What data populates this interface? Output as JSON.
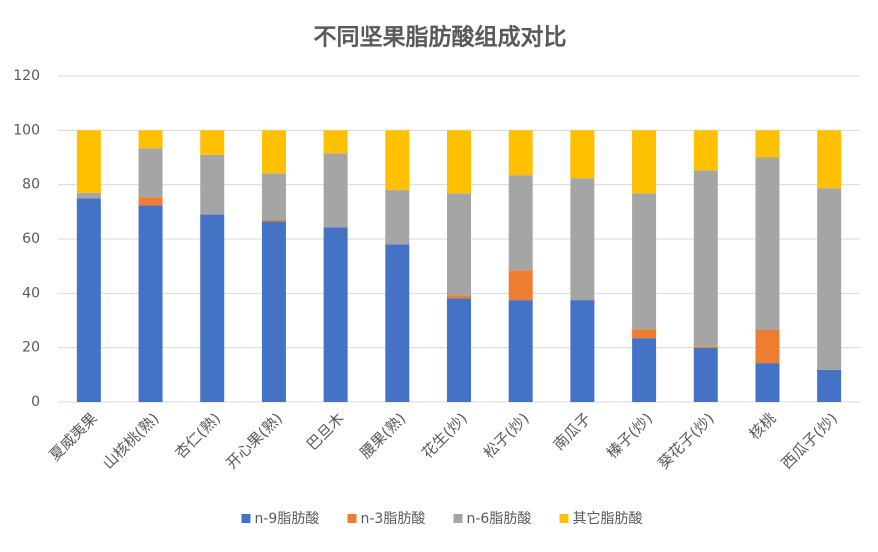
{
  "chart_data": {
    "type": "stacked_bar",
    "title": "不同坚果脂肪酸组成对比",
    "categories": [
      "夏威夷果",
      "山核桃(熟)",
      "杏仁(熟)",
      "开心果(熟)",
      "巴旦木",
      "腰果(熟)",
      "花生(炒)",
      "松子(炒)",
      "南瓜子",
      "榛子(炒)",
      "葵花子(炒)",
      "核桃",
      "西瓜子(炒)"
    ],
    "series": [
      {
        "name": "n-9脂肪酸",
        "color": "#4472c4",
        "values": [
          75,
          72.4,
          69,
          66.5,
          64.3,
          58,
          38.2,
          37.5,
          37.5,
          23.5,
          19.9,
          14.3,
          11.8
        ]
      },
      {
        "name": "n-3脂肪酸",
        "color": "#ed7d31",
        "values": [
          0,
          3,
          0,
          0.5,
          0,
          0,
          1.1,
          11,
          0,
          3.3,
          0.5,
          12.2,
          0
        ]
      },
      {
        "name": "n-6脂肪酸",
        "color": "#a5a5a5",
        "values": [
          2,
          18,
          22,
          17.2,
          27.2,
          20,
          37.5,
          35,
          44.9,
          50,
          64.9,
          63.5,
          66.9
        ]
      },
      {
        "name": "其它脂肪酸",
        "color": "#ffc000",
        "values": [
          23,
          6.6,
          9,
          15.8,
          8.5,
          22,
          23.2,
          16.5,
          17.6,
          23.2,
          14.7,
          10,
          21.3
        ]
      }
    ],
    "ylim": [
      0,
      120
    ],
    "yticks": [
      0,
      20,
      40,
      60,
      80,
      100,
      120
    ],
    "grid": true,
    "legend": "bottom"
  }
}
